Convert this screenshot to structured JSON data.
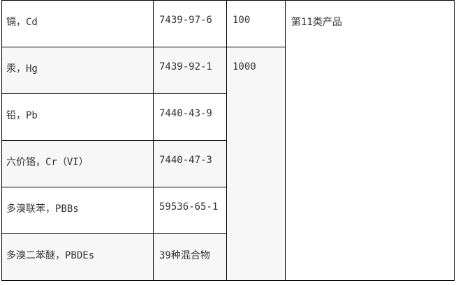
{
  "rows": [
    {
      "substance": "镉，Cd",
      "cas": "7439-97-6"
    },
    {
      "substance": "汞，Hg",
      "cas": "7439-92-1"
    },
    {
      "substance": "铅，Pb",
      "cas": "7440-43-9"
    },
    {
      "substance": "六价铬，Cr（VI）",
      "cas": "7440-47-3"
    },
    {
      "substance": "多溴联苯，PBBs",
      "cas": "59536-65-1"
    },
    {
      "substance": "多溴二苯醚，PBDEs",
      "cas": "39种混合物"
    }
  ],
  "limit_cd": "100",
  "limit_others": "1000",
  "category": "第11类产品"
}
